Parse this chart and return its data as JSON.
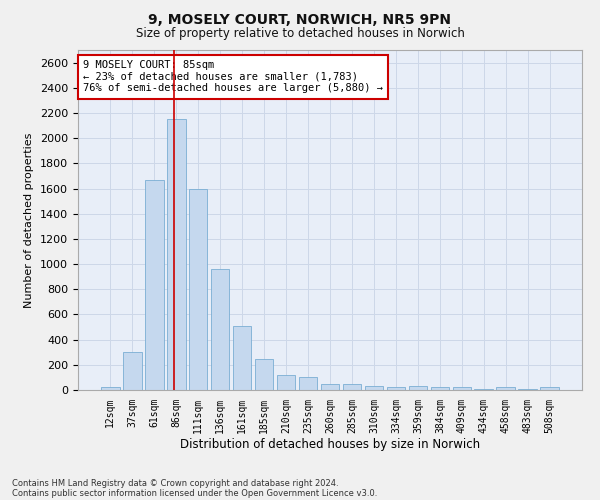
{
  "title_line1": "9, MOSELY COURT, NORWICH, NR5 9PN",
  "title_line2": "Size of property relative to detached houses in Norwich",
  "xlabel": "Distribution of detached houses by size in Norwich",
  "ylabel": "Number of detached properties",
  "bar_color": "#c5d8ee",
  "bar_edge_color": "#7aaed4",
  "categories": [
    "12sqm",
    "37sqm",
    "61sqm",
    "86sqm",
    "111sqm",
    "136sqm",
    "161sqm",
    "185sqm",
    "210sqm",
    "235sqm",
    "260sqm",
    "285sqm",
    "310sqm",
    "334sqm",
    "359sqm",
    "384sqm",
    "409sqm",
    "434sqm",
    "458sqm",
    "483sqm",
    "508sqm"
  ],
  "values": [
    25,
    300,
    1670,
    2150,
    1595,
    960,
    505,
    250,
    120,
    100,
    50,
    45,
    30,
    20,
    30,
    20,
    20,
    10,
    20,
    5,
    25
  ],
  "ylim": [
    0,
    2700
  ],
  "yticks": [
    0,
    200,
    400,
    600,
    800,
    1000,
    1200,
    1400,
    1600,
    1800,
    2000,
    2200,
    2400,
    2600
  ],
  "vline_color": "#cc0000",
  "annotation_text": "9 MOSELY COURT: 85sqm\n← 23% of detached houses are smaller (1,783)\n76% of semi-detached houses are larger (5,880) →",
  "annotation_box_color": "#ffffff",
  "annotation_box_edge": "#cc0000",
  "grid_color": "#cdd7e8",
  "background_color": "#e8eef8",
  "fig_background": "#f0f0f0",
  "footnote1": "Contains HM Land Registry data © Crown copyright and database right 2024.",
  "footnote2": "Contains public sector information licensed under the Open Government Licence v3.0."
}
